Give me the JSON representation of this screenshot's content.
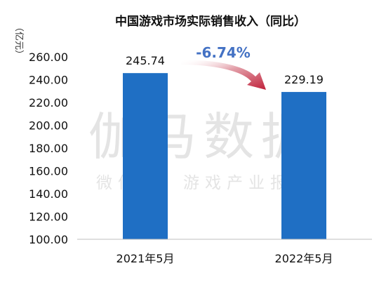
{
  "chart_data": {
    "type": "bar",
    "title": "中国游戏市场实际销售收入（同比）",
    "ylabel": "（亿元）",
    "xlabel": "",
    "categories": [
      "2021年5月",
      "2022年5月"
    ],
    "values": [
      245.74,
      229.19
    ],
    "data_labels": [
      "245.74",
      "229.19"
    ],
    "ylim": [
      100,
      260
    ],
    "y_ticks": [
      "100.00",
      "120.00",
      "140.00",
      "160.00",
      "180.00",
      "200.00",
      "220.00",
      "240.00",
      "260.00"
    ],
    "grid": false,
    "change_label": "-6.74%",
    "watermark": {
      "main": "伽马数据",
      "sub": "微信号：游戏产业报告"
    },
    "colors": {
      "bar": "#1f6fc4",
      "change_text": "#4472c4",
      "arrow": "#c0213a",
      "watermark": "#e4e4e4"
    }
  }
}
